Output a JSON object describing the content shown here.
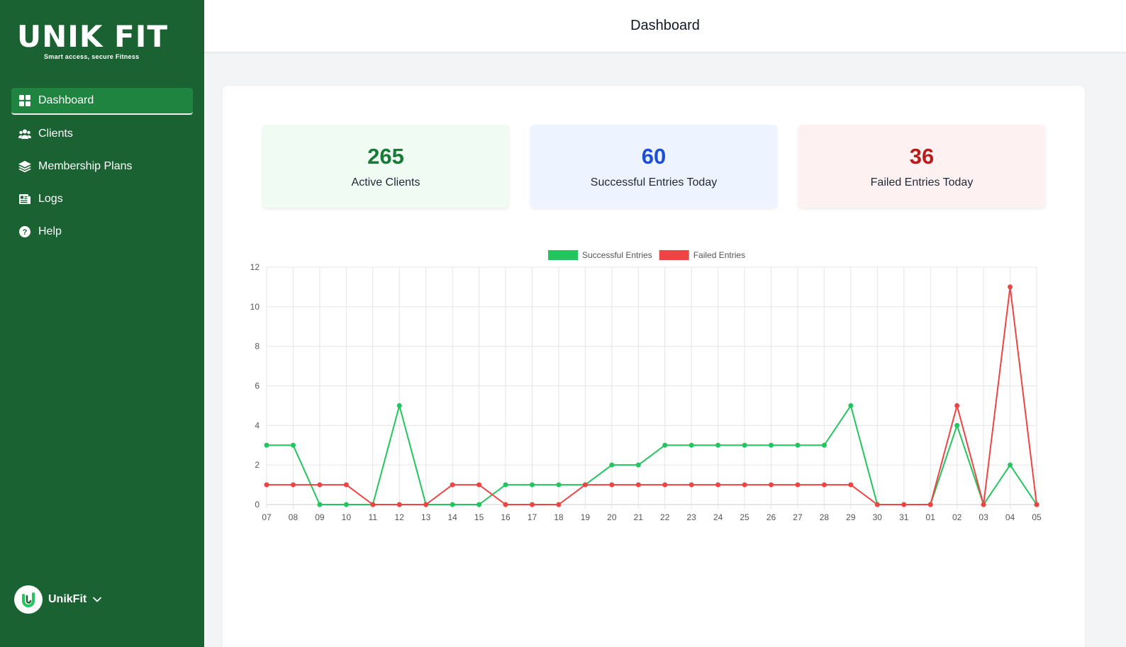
{
  "brand": {
    "name": "UNIK FIT",
    "tagline": "Smart access, secure Fitness"
  },
  "sidebar": {
    "items": [
      {
        "label": "Dashboard",
        "icon": "grid-icon",
        "active": true
      },
      {
        "label": "Clients",
        "icon": "users-icon",
        "active": false
      },
      {
        "label": "Membership Plans",
        "icon": "layers-icon",
        "active": false
      },
      {
        "label": "Logs",
        "icon": "logs-icon",
        "active": false
      },
      {
        "label": "Help",
        "icon": "help-icon",
        "active": false
      }
    ],
    "user": {
      "name": "UnikFit",
      "icon": "chevron-down-icon"
    }
  },
  "header": {
    "title": "Dashboard"
  },
  "stats": [
    {
      "value": "265",
      "label": "Active Clients"
    },
    {
      "value": "60",
      "label": "Successful Entries Today"
    },
    {
      "value": "36",
      "label": "Failed Entries Today"
    }
  ],
  "colors": {
    "sidebar": "#1b6233",
    "success": "#22c55e",
    "failed": "#ef4444"
  },
  "chart_data": {
    "type": "line",
    "x": [
      "07",
      "08",
      "09",
      "10",
      "11",
      "12",
      "13",
      "14",
      "15",
      "16",
      "17",
      "18",
      "19",
      "20",
      "21",
      "22",
      "23",
      "24",
      "25",
      "26",
      "27",
      "28",
      "29",
      "30",
      "31",
      "01",
      "02",
      "03",
      "04",
      "05"
    ],
    "ylim": [
      0,
      12
    ],
    "yticks": [
      0,
      2,
      4,
      6,
      8,
      10,
      12
    ],
    "grid": true,
    "legend_position": "top-center",
    "series": [
      {
        "name": "Successful Entries",
        "color": "#22c55e",
        "values": [
          3,
          3,
          0,
          0,
          0,
          5,
          0,
          0,
          0,
          1,
          1,
          1,
          1,
          2,
          2,
          3,
          3,
          3,
          3,
          3,
          3,
          3,
          5,
          0,
          0,
          0,
          4,
          0,
          2,
          0
        ]
      },
      {
        "name": "Failed Entries",
        "color": "#ef4444",
        "values": [
          1,
          1,
          1,
          1,
          0,
          0,
          0,
          1,
          1,
          0,
          0,
          0,
          1,
          1,
          1,
          1,
          1,
          1,
          1,
          1,
          1,
          1,
          1,
          0,
          0,
          0,
          5,
          0,
          11,
          0
        ]
      }
    ]
  }
}
